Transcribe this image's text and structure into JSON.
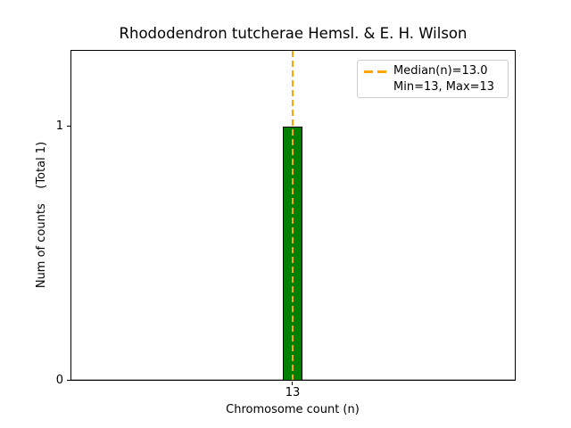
{
  "chart_data": {
    "type": "bar",
    "title": "Rhododendron tutcherae Hemsl. & E. H. Wilson",
    "xlabel": "Chromosome count (n)",
    "ylabel": "Num of counts    (Total 1)",
    "categories": [
      13
    ],
    "values": [
      1
    ],
    "total_counts": 1,
    "x_tick_labels": [
      "13"
    ],
    "y_tick_labels": [
      "0",
      "1"
    ],
    "ylim": [
      0,
      1.3
    ],
    "grid": false,
    "bar_color": "#008000",
    "bar_edge_color": "#000000",
    "zero_baseline_color": "#bfbfbf",
    "median_line": {
      "value": 13.0,
      "color": "#FFA500",
      "style": "dashed",
      "orientation": "vertical"
    },
    "stats": {
      "median": 13.0,
      "min": 13,
      "max": 13
    },
    "legend": {
      "position": "upper right",
      "entries": [
        {
          "label": "Median(n)=13.0",
          "sample": "orange-dashed-line"
        },
        {
          "label": "Min=13, Max=13",
          "sample": "none"
        }
      ]
    }
  }
}
